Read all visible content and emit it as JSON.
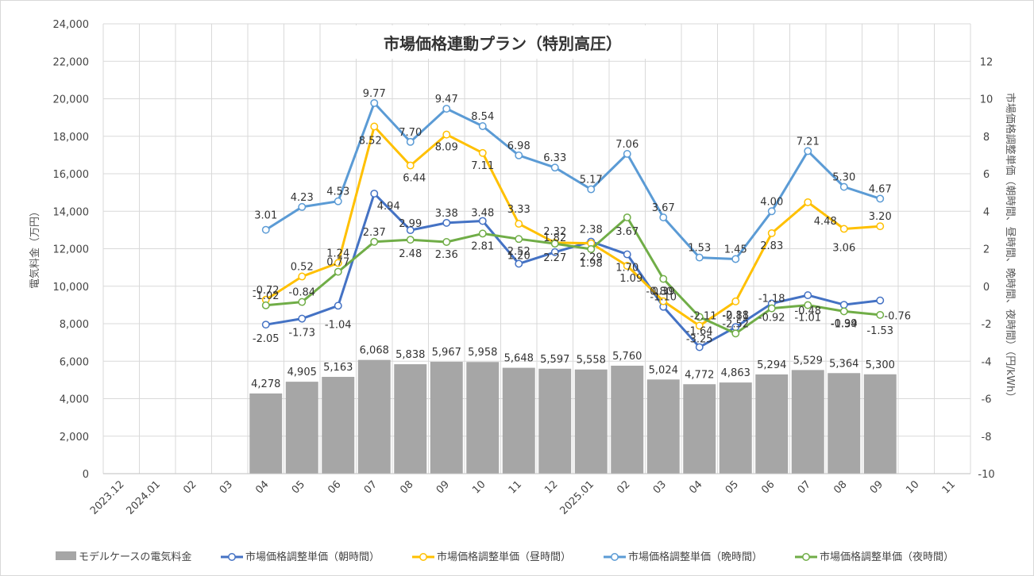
{
  "chart_data": {
    "type": "bar+line",
    "title": "市場価格連動プラン（特別高圧）",
    "categories": [
      "2023.12",
      "2024.01",
      "02",
      "03",
      "04",
      "05",
      "06",
      "07",
      "08",
      "09",
      "10",
      "11",
      "12",
      "2025.01",
      "02",
      "03",
      "04",
      "05",
      "06",
      "07",
      "08",
      "09",
      "10",
      "11"
    ],
    "ylabel_left": "電気料金（万円）",
    "ylabel_right": "市場価格調整単価（朝時間、昼時間、晩時間、夜時間）（円/kWh）",
    "ylim_left": [
      0,
      24000
    ],
    "yticks_left": [
      "0",
      "2,000",
      "4,000",
      "6,000",
      "8,000",
      "10,000",
      "12,000",
      "14,000",
      "16,000",
      "18,000",
      "20,000",
      "22,000",
      "24,000"
    ],
    "ylim_right": [
      -10,
      14
    ],
    "yticks_right": [
      "-10",
      "-8",
      "-6",
      "-4",
      "-2",
      "0",
      "2",
      "4",
      "6",
      "8",
      "10",
      "12"
    ],
    "grid": true,
    "legend_position": "bottom",
    "bars": {
      "name": "モデルケースの電気料金",
      "color": "#a6a6a6",
      "values": [
        null,
        null,
        null,
        null,
        4278,
        4905,
        5163,
        6068,
        5838,
        5967,
        5958,
        5648,
        5597,
        5558,
        5760,
        5024,
        4772,
        4863,
        5294,
        5529,
        5364,
        5300,
        null,
        null
      ],
      "labels": [
        null,
        null,
        null,
        null,
        "4,278",
        "4,905",
        "5,163",
        "6,068",
        "5,838",
        "5,967",
        "5,958",
        "5,648",
        "5,597",
        "5,558",
        "5,760",
        "5,024",
        "4,772",
        "4,863",
        "5,294",
        "5,529",
        "5,364",
        "5,300",
        null,
        null
      ]
    },
    "series": [
      {
        "name": "市場価格調整単価（朝時間）",
        "color": "#4472c4",
        "values": [
          null,
          null,
          null,
          null,
          -2.05,
          -1.73,
          -1.04,
          4.94,
          2.99,
          3.38,
          3.48,
          1.2,
          1.82,
          2.38,
          1.7,
          -1.1,
          -3.25,
          -2.18,
          -0.92,
          -0.48,
          -0.99,
          -0.76,
          null,
          null
        ],
        "labels": [
          null,
          null,
          null,
          null,
          "-2.05",
          "-1.73",
          "-1.04",
          "4.94",
          "2.99",
          "3.38",
          "3.48",
          "1.20",
          "1.82",
          "2.38",
          "1.70",
          "-1.10",
          "-3.25",
          "-2.18",
          "-0.92",
          "-0.48",
          "-0.99",
          "-0.76",
          null,
          null
        ]
      },
      {
        "name": "市場価格調整単価（昼時間）",
        "color": "#ffc000",
        "values": [
          null,
          null,
          null,
          null,
          -0.72,
          0.52,
          1.24,
          8.52,
          6.44,
          8.09,
          7.11,
          3.33,
          2.32,
          2.29,
          1.09,
          -0.8,
          -2.11,
          -0.81,
          2.83,
          4.48,
          3.06,
          3.2,
          null,
          null
        ],
        "labels": [
          null,
          null,
          null,
          null,
          "-0.72",
          "0.52",
          "1.24",
          "8.52",
          "6.44",
          "8.09",
          "7.11",
          "3.33",
          "2.32",
          "2.29",
          "1.09",
          "-0.80",
          "-2.11",
          "-0.81",
          "2.83",
          "4.48",
          "3.06",
          "3.20",
          null,
          null
        ]
      },
      {
        "name": "市場価格調整単価（晩時間）",
        "color": "#5b9bd5",
        "values": [
          null,
          null,
          null,
          null,
          3.01,
          4.23,
          4.53,
          9.77,
          7.7,
          9.47,
          8.54,
          6.98,
          6.33,
          5.17,
          7.06,
          3.67,
          1.53,
          1.45,
          4.0,
          7.21,
          5.3,
          4.67,
          null,
          null
        ],
        "labels": [
          null,
          null,
          null,
          null,
          "3.01",
          "4.23",
          "4.53",
          "9.77",
          "7.70",
          "9.47",
          "8.54",
          "6.98",
          "6.33",
          "5.17",
          "7.06",
          "3.67",
          "1.53",
          "1.45",
          "4.00",
          "7.21",
          "5.30",
          "4.67",
          null,
          null
        ]
      },
      {
        "name": "市場価格調整単価（夜時間）",
        "color": "#70ad47",
        "values": [
          null,
          null,
          null,
          null,
          -1.02,
          -0.84,
          0.77,
          2.37,
          2.48,
          2.36,
          2.81,
          2.52,
          2.27,
          1.98,
          3.67,
          0.39,
          -1.64,
          -2.52,
          -1.18,
          -1.01,
          -1.34,
          -1.53,
          null,
          null
        ],
        "labels": [
          null,
          null,
          null,
          null,
          "-1.02",
          "-0.84",
          "0.77",
          "2.37",
          "2.48",
          "2.36",
          "2.81",
          "2.52",
          "2.27",
          "1.98",
          "3.67",
          "0.39",
          "-1.64",
          "-2.52",
          "-1.18",
          "-1.01",
          "-1.34",
          "-1.53",
          null,
          null
        ]
      }
    ]
  }
}
